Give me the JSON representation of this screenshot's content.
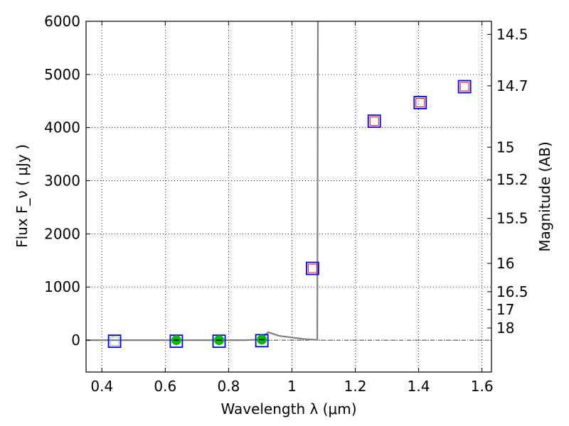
{
  "chart_data": {
    "type": "scatter",
    "xlabel": "Wavelength  λ (μm)",
    "ylabel": "Flux  F_ν  ( μJy )",
    "ylabel_right": "Magnitude (AB)",
    "xlim": [
      0.35,
      1.63
    ],
    "ylim": [
      -600,
      6000
    ],
    "grid": true,
    "x_ticks": [
      {
        "value": 0.4,
        "label": "0.4"
      },
      {
        "value": 0.6,
        "label": "0.6"
      },
      {
        "value": 0.8,
        "label": "0.8"
      },
      {
        "value": 1.0,
        "label": "1"
      },
      {
        "value": 1.2,
        "label": "1.2"
      },
      {
        "value": 1.4,
        "label": "1.4"
      },
      {
        "value": 1.6,
        "label": "1.6"
      }
    ],
    "y_ticks": [
      {
        "value": 0,
        "label": "0"
      },
      {
        "value": 1000,
        "label": "1000"
      },
      {
        "value": 2000,
        "label": "2000"
      },
      {
        "value": 3000,
        "label": "3000"
      },
      {
        "value": 4000,
        "label": "4000"
      },
      {
        "value": 5000,
        "label": "5000"
      },
      {
        "value": 6000,
        "label": "6000"
      }
    ],
    "magnitude_ticks": [
      {
        "value": 14.5,
        "label": "14.5"
      },
      {
        "value": 14.7,
        "label": "14.7"
      },
      {
        "value": 15,
        "label": "15"
      },
      {
        "value": 15.2,
        "label": "15.2"
      },
      {
        "value": 15.5,
        "label": "15.5"
      },
      {
        "value": 16,
        "label": "16"
      },
      {
        "value": 16.5,
        "label": "16.5"
      },
      {
        "value": 17,
        "label": "17"
      },
      {
        "value": 18,
        "label": "18"
      }
    ],
    "zero_line": 0,
    "model_sed": {
      "color": "#808080",
      "points": [
        [
          0.35,
          0
        ],
        [
          0.45,
          0
        ],
        [
          0.55,
          0
        ],
        [
          0.65,
          0
        ],
        [
          0.75,
          0
        ],
        [
          0.85,
          0
        ],
        [
          0.9,
          10
        ],
        [
          0.925,
          150
        ],
        [
          0.96,
          80
        ],
        [
          1.0,
          50
        ],
        [
          1.04,
          20
        ],
        [
          1.08,
          5
        ],
        [
          1.082,
          6000
        ]
      ]
    },
    "model_photometry": {
      "marker": "square",
      "color": "#0000ff",
      "points": [
        {
          "x": 0.44,
          "y": -20
        },
        {
          "x": 0.635,
          "y": -20
        },
        {
          "x": 0.77,
          "y": -20
        },
        {
          "x": 0.905,
          "y": -10
        },
        {
          "x": 1.065,
          "y": 1350
        },
        {
          "x": 1.26,
          "y": 4120
        },
        {
          "x": 1.405,
          "y": 4470
        },
        {
          "x": 1.545,
          "y": 4770
        }
      ]
    },
    "observed_detections": {
      "marker": "circle",
      "color": "#00bb00",
      "points": [
        {
          "x": 0.635,
          "y": 0,
          "err": 30
        },
        {
          "x": 0.77,
          "y": 0,
          "err": 30
        },
        {
          "x": 0.905,
          "y": 10,
          "err": 30
        }
      ]
    },
    "observed_upper_limits": {
      "marker": "open-square",
      "color": "#ff0000",
      "points": [
        {
          "x": 1.065,
          "y": 1350
        },
        {
          "x": 1.26,
          "y": 4120
        },
        {
          "x": 1.405,
          "y": 4470
        },
        {
          "x": 1.545,
          "y": 4770
        }
      ]
    },
    "inner_faint_markers": {
      "color": "#88bbaa",
      "points": [
        {
          "x": 0.44,
          "y": -20
        }
      ]
    }
  }
}
